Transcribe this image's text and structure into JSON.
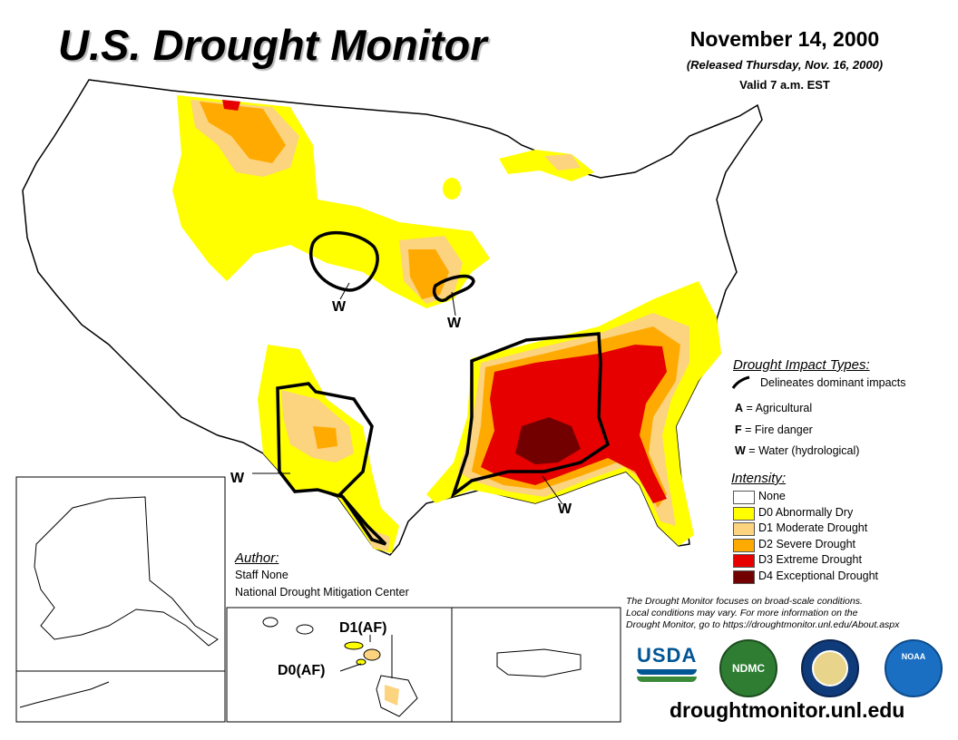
{
  "header": {
    "title": "U.S. Drought Monitor",
    "date": "November 14, 2000",
    "released": "(Released Thursday, Nov. 16, 2000)",
    "valid": "Valid 7 a.m. EST"
  },
  "impact_legend": {
    "heading": "Drought Impact Types:",
    "line_text": "Delineates dominant impacts",
    "items": [
      {
        "key": "A",
        "sep": " = ",
        "text": "Agricultural"
      },
      {
        "key": "F",
        "sep": " = ",
        "text": "Fire danger"
      },
      {
        "key": "W",
        "sep": " = ",
        "text": "Water (hydrological)"
      }
    ]
  },
  "intensity_legend": {
    "heading": "Intensity:",
    "items": [
      {
        "label": "None",
        "color": "#ffffff"
      },
      {
        "label": "D0 Abnormally Dry",
        "color": "#ffff00"
      },
      {
        "label": "D1 Moderate Drought",
        "color": "#fcd37f"
      },
      {
        "label": "D2 Severe Drought",
        "color": "#ffaa00"
      },
      {
        "label": "D3 Extreme Drought",
        "color": "#e60000"
      },
      {
        "label": "D4 Exceptional Drought",
        "color": "#730000"
      }
    ]
  },
  "author": {
    "heading": "Author:",
    "name": "Staff None",
    "org": "National Drought Mitigation Center"
  },
  "note": {
    "line1": "The Drought Monitor focuses on broad-scale conditions.",
    "line2": "Local conditions may vary. For more information on the",
    "line3": "Drought Monitor, go to https://droughtmonitor.unl.edu/About.aspx"
  },
  "map_labels": {
    "w_nebraska": "W",
    "w_kansas_mo": "W",
    "w_texas": "W",
    "w_southeast": "W",
    "hawaii_d1": "D1(AF)",
    "hawaii_d0": "D0(AF)"
  },
  "logos": {
    "usda": "USDA",
    "ndmc": "NDMC",
    "noaa": "NOAA"
  },
  "footer": {
    "url": "droughtmonitor.unl.edu"
  }
}
